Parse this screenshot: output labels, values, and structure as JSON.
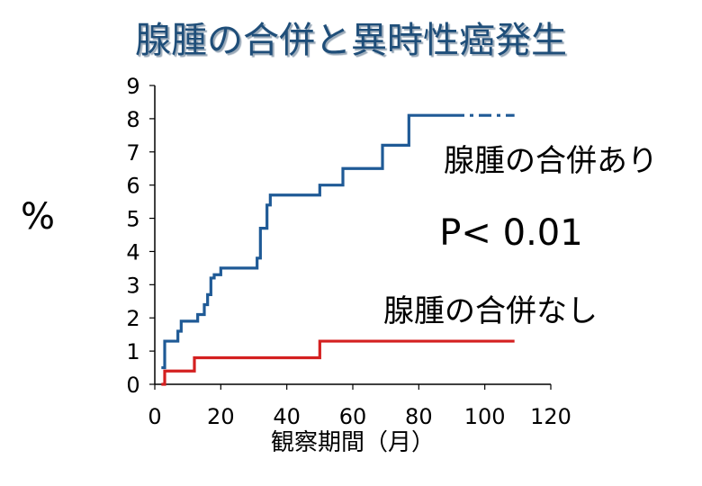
{
  "slide": {
    "title": "腺腫の合併と異時性癌発生",
    "title_color": "#1f4e79",
    "title_shadow": "#9aa9b8"
  },
  "chart_data": {
    "type": "line",
    "step": true,
    "title": "腺腫の合併と異時性癌発生",
    "xlabel": "観察期間（月）",
    "ylabel": "%",
    "xlim": [
      0,
      120
    ],
    "ylim": [
      0,
      9
    ],
    "xticks": [
      0,
      20,
      40,
      60,
      80,
      100,
      120
    ],
    "yticks": [
      0,
      1,
      2,
      3,
      4,
      5,
      6,
      7,
      8,
      9
    ],
    "grid": false,
    "annotations": [
      {
        "text": "P< 0.01"
      }
    ],
    "series": [
      {
        "name": "腺腫の合併あり",
        "color": "#1f5a96",
        "x": [
          2,
          3,
          4,
          7,
          8,
          13,
          15,
          16,
          17,
          18,
          20,
          31,
          32,
          34,
          35,
          50,
          57,
          69,
          77,
          90
        ],
        "y": [
          0.5,
          1.3,
          1.3,
          1.6,
          1.9,
          2.1,
          2.4,
          2.7,
          3.2,
          3.3,
          3.5,
          3.8,
          4.7,
          5.4,
          5.7,
          6.0,
          6.5,
          7.2,
          8.1,
          8.1
        ],
        "dashed_from_x": 90,
        "dashed_to_x": 109
      },
      {
        "name": "腺腫の合併なし",
        "color": "#d42020",
        "x": [
          2,
          3,
          12,
          50,
          109
        ],
        "y": [
          0,
          0.4,
          0.8,
          1.3,
          1.3
        ]
      }
    ]
  }
}
